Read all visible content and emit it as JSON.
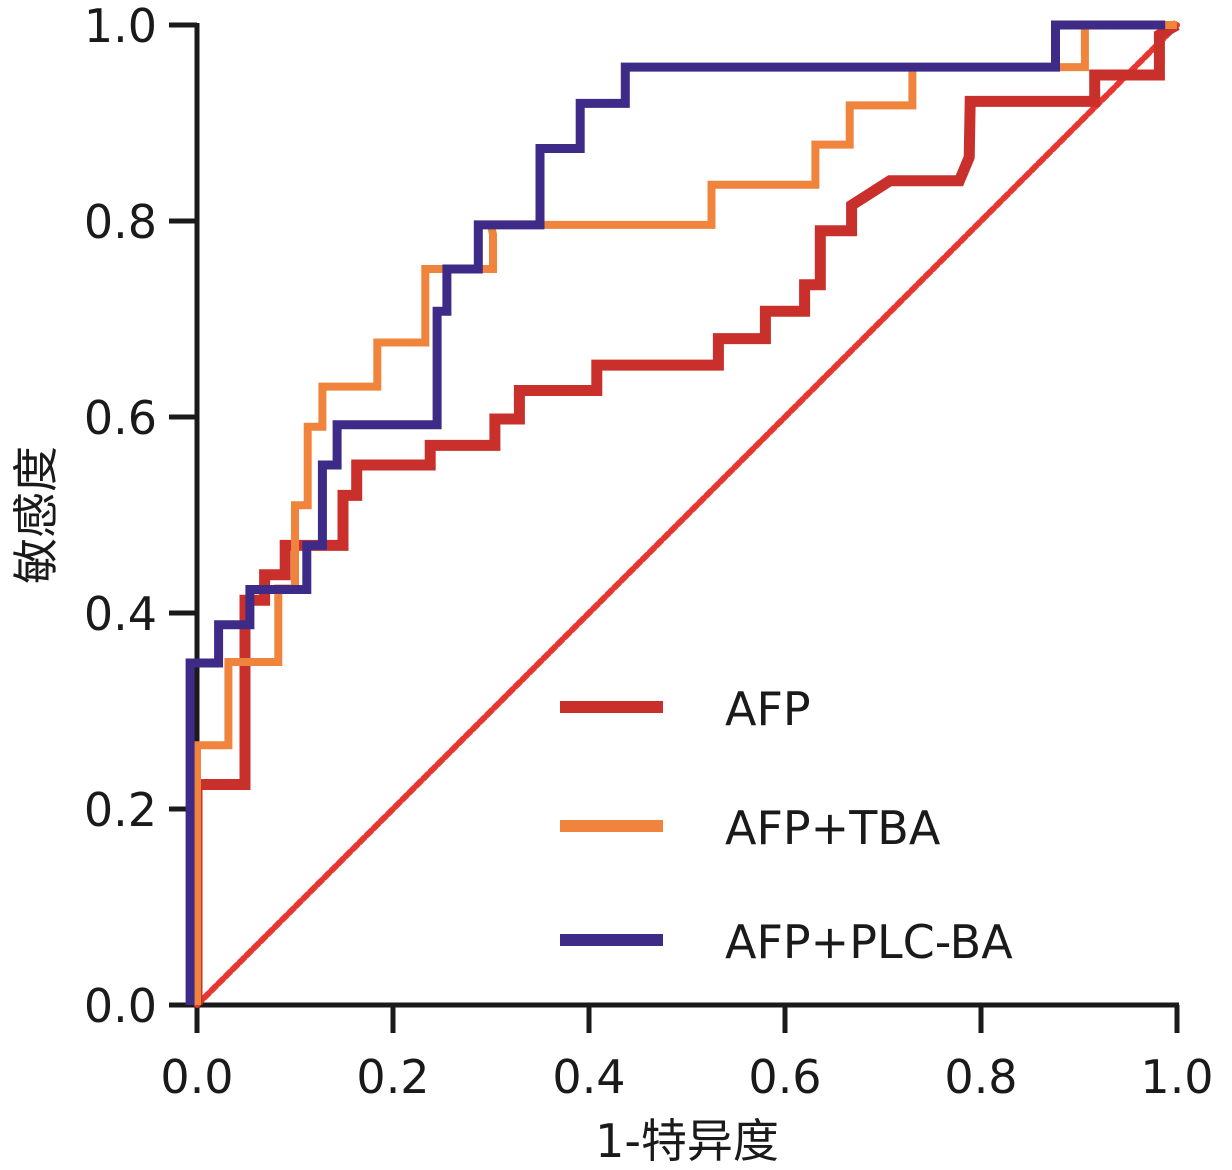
{
  "chart_data": {
    "type": "line",
    "subtype": "roc-step",
    "title": "",
    "xlabel": "1-特异度",
    "ylabel": "敏感度",
    "xlim": [
      0,
      1
    ],
    "ylim": [
      0,
      1
    ],
    "xticks": [
      "0.0",
      "0.2",
      "0.4",
      "0.6",
      "0.8",
      "1.0"
    ],
    "yticks": [
      "0.0",
      "0.2",
      "0.4",
      "0.6",
      "0.8",
      "1.0"
    ],
    "grid": false,
    "legend_position": "bottom-right",
    "series": [
      {
        "name": "AFP",
        "color": "#C9302C",
        "points": [
          [
            0.0,
            0.0
          ],
          [
            0.0,
            0.225
          ],
          [
            0.049,
            0.225
          ],
          [
            0.049,
            0.413
          ],
          [
            0.069,
            0.413
          ],
          [
            0.069,
            0.439
          ],
          [
            0.09,
            0.439
          ],
          [
            0.09,
            0.469
          ],
          [
            0.149,
            0.469
          ],
          [
            0.149,
            0.52
          ],
          [
            0.163,
            0.52
          ],
          [
            0.163,
            0.551
          ],
          [
            0.238,
            0.551
          ],
          [
            0.238,
            0.571
          ],
          [
            0.304,
            0.571
          ],
          [
            0.304,
            0.598
          ],
          [
            0.329,
            0.598
          ],
          [
            0.329,
            0.627
          ],
          [
            0.408,
            0.627
          ],
          [
            0.408,
            0.653
          ],
          [
            0.532,
            0.653
          ],
          [
            0.532,
            0.68
          ],
          [
            0.58,
            0.68
          ],
          [
            0.58,
            0.708
          ],
          [
            0.62,
            0.708
          ],
          [
            0.62,
            0.735
          ],
          [
            0.636,
            0.735
          ],
          [
            0.636,
            0.79
          ],
          [
            0.668,
            0.79
          ],
          [
            0.668,
            0.816
          ],
          [
            0.707,
            0.841
          ],
          [
            0.778,
            0.841
          ],
          [
            0.788,
            0.865
          ],
          [
            0.789,
            0.922
          ],
          [
            0.916,
            0.922
          ],
          [
            0.916,
            0.949
          ],
          [
            0.982,
            0.949
          ],
          [
            0.982,
            0.99
          ],
          [
            1.0,
            1.0
          ]
        ]
      },
      {
        "name": "AFP+TBA",
        "color": "#F0843C",
        "points": [
          [
            0.0,
            0.0
          ],
          [
            0.0,
            0.265
          ],
          [
            0.032,
            0.265
          ],
          [
            0.032,
            0.35
          ],
          [
            0.083,
            0.35
          ],
          [
            0.083,
            0.425
          ],
          [
            0.1,
            0.425
          ],
          [
            0.1,
            0.51
          ],
          [
            0.113,
            0.51
          ],
          [
            0.113,
            0.59
          ],
          [
            0.128,
            0.59
          ],
          [
            0.128,
            0.631
          ],
          [
            0.184,
            0.631
          ],
          [
            0.184,
            0.676
          ],
          [
            0.233,
            0.676
          ],
          [
            0.233,
            0.751
          ],
          [
            0.302,
            0.751
          ],
          [
            0.302,
            0.786
          ],
          [
            0.3,
            0.796
          ],
          [
            0.525,
            0.796
          ],
          [
            0.525,
            0.837
          ],
          [
            0.631,
            0.837
          ],
          [
            0.631,
            0.878
          ],
          [
            0.666,
            0.878
          ],
          [
            0.666,
            0.918
          ],
          [
            0.73,
            0.918
          ],
          [
            0.73,
            0.957
          ],
          [
            0.906,
            0.957
          ],
          [
            0.906,
            1.0
          ],
          [
            1.0,
            1.0
          ]
        ]
      },
      {
        "name": "AFP+PLC-BA",
        "color": "#3E2A87",
        "points": [
          [
            -0.007,
            0.0
          ],
          [
            -0.007,
            0.349
          ],
          [
            0.022,
            0.349
          ],
          [
            0.022,
            0.388
          ],
          [
            0.054,
            0.388
          ],
          [
            0.054,
            0.424
          ],
          [
            0.112,
            0.424
          ],
          [
            0.112,
            0.469
          ],
          [
            0.128,
            0.469
          ],
          [
            0.128,
            0.551
          ],
          [
            0.143,
            0.551
          ],
          [
            0.143,
            0.592
          ],
          [
            0.245,
            0.592
          ],
          [
            0.245,
            0.708
          ],
          [
            0.255,
            0.708
          ],
          [
            0.255,
            0.751
          ],
          [
            0.287,
            0.751
          ],
          [
            0.287,
            0.796
          ],
          [
            0.35,
            0.796
          ],
          [
            0.35,
            0.874
          ],
          [
            0.391,
            0.874
          ],
          [
            0.391,
            0.92
          ],
          [
            0.437,
            0.92
          ],
          [
            0.437,
            0.957
          ],
          [
            0.876,
            0.957
          ],
          [
            0.876,
            1.0
          ],
          [
            0.988,
            1.0
          ]
        ]
      },
      {
        "name": "reference",
        "color": "#E8352F",
        "dashed": true,
        "points": [
          [
            0.0,
            0.0
          ],
          [
            1.0,
            1.0
          ]
        ]
      }
    ],
    "legend": [
      {
        "label": "AFP",
        "color": "#C9302C"
      },
      {
        "label": "AFP+TBA",
        "color": "#F0843C"
      },
      {
        "label": "AFP+PLC-BA",
        "color": "#3E2A87"
      }
    ]
  }
}
